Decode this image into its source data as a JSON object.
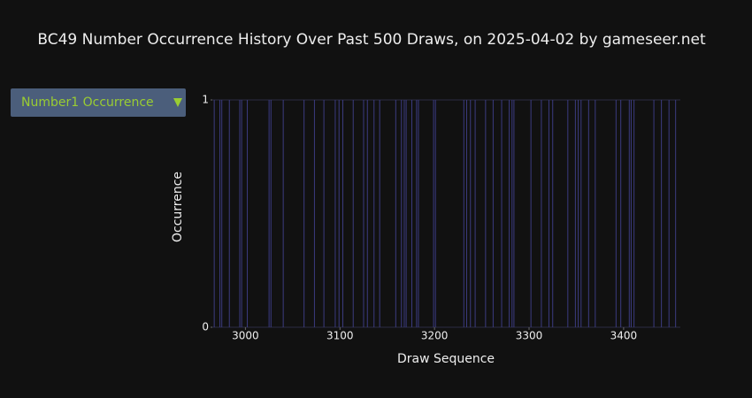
{
  "dropdown": {
    "label": "Number1 Occurrence"
  },
  "chart_data": {
    "type": "occurrence",
    "title": "BC49 Number Occurrence History Over Past 500 Draws, on 2025-04-02 by gameseer.net",
    "x_label": "Draw Sequence",
    "y_label": "Occurrence",
    "color": "#3b3b80",
    "x": [
      2967,
      2973,
      2975,
      2983,
      2994,
      2996,
      3002,
      3025,
      3027,
      3040,
      3062,
      3073,
      3083,
      3095,
      3099,
      3103,
      3114,
      3125,
      3129,
      3136,
      3142,
      3159,
      3165,
      3168,
      3170,
      3176,
      3181,
      3183,
      3199,
      3201,
      3231,
      3234,
      3238,
      3243,
      3254,
      3262,
      3271,
      3279,
      3282,
      3284,
      3302,
      3313,
      3321,
      3325,
      3341,
      3349,
      3352,
      3355,
      3363,
      3370,
      3392,
      3397,
      3406,
      3408,
      3411,
      3432,
      3440,
      3448,
      3455
    ],
    "values": [
      1,
      1,
      1,
      1,
      1,
      1,
      1,
      1,
      1,
      1,
      1,
      1,
      1,
      1,
      1,
      1,
      1,
      1,
      1,
      1,
      1,
      1,
      1,
      1,
      1,
      1,
      1,
      1,
      1,
      1,
      1,
      1,
      1,
      1,
      1,
      1,
      1,
      1,
      1,
      1,
      1,
      1,
      1,
      1,
      1,
      1,
      1,
      1,
      1,
      1,
      1,
      1,
      1,
      1,
      1,
      1,
      1,
      1,
      1
    ],
    "xlim": [
      2965,
      3460
    ],
    "xticks": [
      3000,
      3100,
      3200,
      3300,
      3400
    ],
    "ylim": [
      0,
      1
    ],
    "yticks": [
      0,
      1
    ]
  }
}
